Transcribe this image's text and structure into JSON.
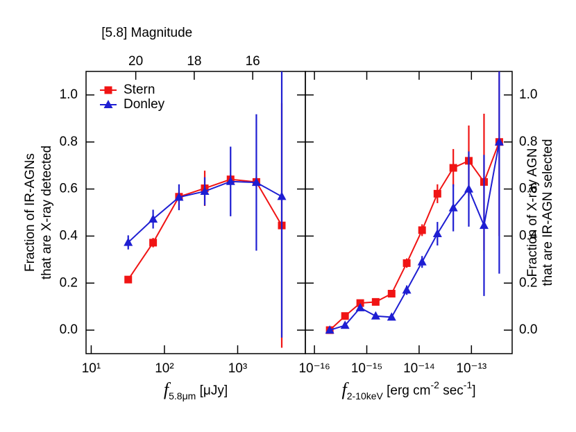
{
  "chart_data": [
    {
      "type": "line",
      "xlabel": [
        "f",
        "5.8μm",
        " [μJy]"
      ],
      "ylabel": [
        "Fraction of IR-AGNs",
        "that are X-ray detected"
      ],
      "xlog": true,
      "xlim": [
        8.5,
        8400
      ],
      "xticks": [
        {
          "value": 10,
          "label": "10¹"
        },
        {
          "value": 100,
          "label": "10²"
        },
        {
          "value": 1000,
          "label": "10³"
        }
      ],
      "ylim": [
        -0.1,
        1.1
      ],
      "yticks": [
        {
          "value": 0,
          "label": "0.0"
        },
        0.2,
        0.4,
        0.6,
        0.8,
        {
          "value": 1,
          "label": "1.0"
        }
      ],
      "x2label": "[5.8] Magnitude",
      "x2lim": [
        21.7,
        14.2
      ],
      "x2ticks": [
        20,
        18,
        16
      ],
      "legend": "upper left",
      "x": [
        32,
        70,
        158,
        355,
        800,
        1800,
        4000
      ],
      "series": [
        {
          "name": "Stern",
          "color": "#f01414",
          "marker": "square",
          "values": [
            0.215,
            0.372,
            0.567,
            0.603,
            0.641,
            0.63,
            0.445
          ],
          "errors": [
            0.01,
            0.02,
            0.02,
            0.075,
            0.02,
            0.02,
            0.52
          ]
        },
        {
          "name": "Donley",
          "color": "#1e1ed2",
          "marker": "triangle",
          "values": [
            0.373,
            0.472,
            0.565,
            0.59,
            0.632,
            0.628,
            0.568
          ],
          "errors": [
            0.03,
            0.04,
            0.055,
            0.06,
            0.148,
            0.29,
            0.6
          ]
        }
      ]
    },
    {
      "type": "line",
      "xlabel": [
        "f",
        "2-10keV",
        " [erg cm",
        "-2",
        " sec",
        "-1",
        "]"
      ],
      "ylabel": [
        "Fraction of X-ray AGN",
        "that are IR-AGN selected"
      ],
      "xlog": true,
      "xlim": [
        6.7e-17,
        6e-13
      ],
      "xticks": [
        {
          "value": 1e-16,
          "label": "10⁻¹⁶"
        },
        {
          "value": 1e-15,
          "label": "10⁻¹⁵"
        },
        {
          "value": 1e-14,
          "label": "10⁻¹⁴"
        },
        {
          "value": 1e-13,
          "label": "10⁻¹³"
        }
      ],
      "ylim": [
        -0.1,
        1.1
      ],
      "yticks": [
        {
          "value": 0,
          "label": "0.0"
        },
        0.2,
        0.4,
        0.6,
        0.8,
        {
          "value": 1,
          "label": "1.0"
        }
      ],
      "yaxis": "right",
      "x": [
        1.96e-16,
        3.84e-16,
        7.5e-16,
        1.48e-15,
        2.98e-15,
        5.8e-15,
        1.14e-14,
        2.24e-14,
        4.5e-14,
        8.9e-14,
        1.74e-13,
        3.4e-13
      ],
      "series": [
        {
          "name": "Stern",
          "color": "#f01414",
          "marker": "square",
          "values": [
            0.0,
            0.06,
            0.115,
            0.12,
            0.155,
            0.285,
            0.425,
            0.58,
            0.69,
            0.72,
            0.63,
            0.8
          ],
          "errors": [
            0.005,
            0.008,
            0.01,
            0.01,
            0.012,
            0.02,
            0.025,
            0.04,
            0.08,
            0.15,
            0.29,
            0.4
          ]
        },
        {
          "name": "Donley",
          "color": "#1e1ed2",
          "marker": "triangle",
          "values": [
            0.0,
            0.02,
            0.095,
            0.06,
            0.055,
            0.17,
            0.29,
            0.41,
            0.52,
            0.6,
            0.445,
            0.8
          ],
          "errors": [
            0.005,
            0.006,
            0.008,
            0.006,
            0.006,
            0.02,
            0.025,
            0.05,
            0.1,
            0.16,
            0.3,
            0.56
          ]
        }
      ]
    }
  ]
}
